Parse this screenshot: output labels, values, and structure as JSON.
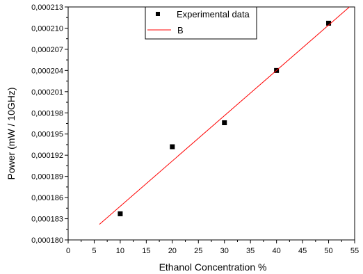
{
  "chart_data": {
    "type": "scatter",
    "xlabel": "Ethanol  Concentration %",
    "ylabel": "Power (mW / 10GHz)",
    "xlim": [
      0,
      55
    ],
    "ylim": [
      0.00018,
      0.000213
    ],
    "x_ticks": [
      0,
      5,
      10,
      15,
      20,
      25,
      30,
      35,
      40,
      45,
      50,
      55
    ],
    "x_tick_labels": [
      "0",
      "5",
      "10",
      "15",
      "20",
      "25",
      "30",
      "35",
      "40",
      "45",
      "50",
      "55"
    ],
    "y_ticks": [
      0.00018,
      0.000183,
      0.000186,
      0.000189,
      0.000192,
      0.000195,
      0.000198,
      0.000201,
      0.000204,
      0.000207,
      0.00021,
      0.000213
    ],
    "y_tick_labels": [
      "0,000180",
      "0,000183",
      "0,000186",
      "0,000189",
      "0,000192",
      "0,000195",
      "0,000198",
      "0,000201",
      "0,000204",
      "0,000207",
      "0,000210",
      "0,000213"
    ],
    "grid": false,
    "legend_position": "top-center",
    "series": [
      {
        "name": "Experimental data",
        "kind": "scatter",
        "marker": "square",
        "color": "#000000",
        "x": [
          10,
          20,
          30,
          40,
          50
        ],
        "y": [
          0.0001837,
          0.0001932,
          0.0001966,
          0.000204,
          0.0002107
        ]
      },
      {
        "name": "B",
        "kind": "line",
        "color": "#ff0000",
        "x": [
          6,
          54
        ],
        "y": [
          0.0001822,
          0.000213
        ]
      }
    ]
  }
}
